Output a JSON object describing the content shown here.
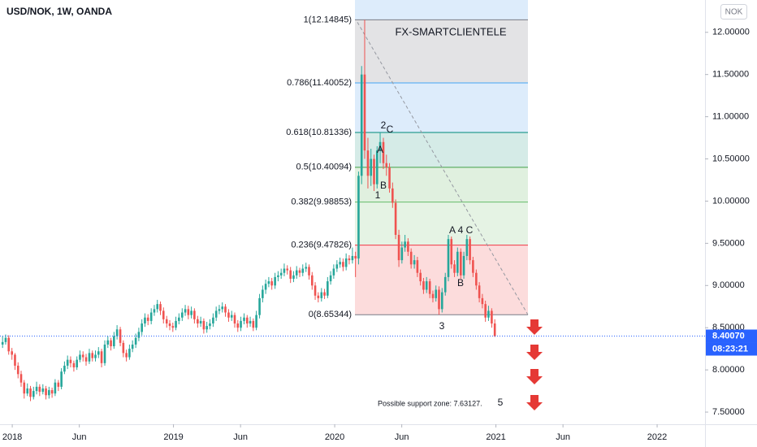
{
  "chart_data": {
    "type": "candlestick",
    "title": "USD/NOK, 1W, OANDA",
    "currency_button": "NOK",
    "up_color": "#26a69a",
    "down_color": "#ef5350",
    "grid": false,
    "xlim": [
      2017.924,
      2022.297
    ],
    "xticks": [
      2018,
      {
        "value": 2018.416,
        "label": "Jun"
      },
      2019,
      {
        "value": 2019.416,
        "label": "Jun"
      },
      2020,
      {
        "value": 2020.416,
        "label": "Jun"
      },
      2021,
      {
        "value": 2021.416,
        "label": "Jun"
      },
      2022
    ],
    "ylim": [
      7.356,
      12.383
    ],
    "yticks": [
      {
        "value": 7.5,
        "label": "7.50000"
      },
      {
        "value": 8,
        "label": "8.00000"
      },
      {
        "value": 8.5,
        "label": "8.50000"
      },
      {
        "value": 9,
        "label": "9.00000"
      },
      {
        "value": 9.5,
        "label": "9.50000"
      },
      {
        "value": 10,
        "label": "10.00000"
      },
      {
        "value": 10.5,
        "label": "10.50000"
      },
      {
        "value": 11,
        "label": "11.00000"
      },
      {
        "value": 11.5,
        "label": "11.50000"
      },
      {
        "value": 12,
        "label": "12.00000"
      }
    ],
    "last_price": {
      "value": 8.4007,
      "label": "8.40070",
      "color": "#2962ff"
    },
    "countdown": "08:23:21",
    "fib_levels": [
      {
        "label": "1(12.14845)",
        "value": 12.14845,
        "color": "#787b86",
        "band_color": "#e3e3e5"
      },
      {
        "label": "0.786(11.40052)",
        "value": 11.40052,
        "color": "#42a5f5",
        "band_color": "#ddecfb"
      },
      {
        "label": "0.618(10.81336)",
        "value": 10.81336,
        "color": "#00897b",
        "band_color": "#d5ebe7"
      },
      {
        "label": "0.5(10.40094)",
        "value": 10.40094,
        "color": "#43a047",
        "band_color": "#e0f0df"
      },
      {
        "label": "0.382(9.98853)",
        "value": 9.98853,
        "color": "#66bb6a",
        "band_color": "#e5f3e4"
      },
      {
        "label": "0.236(9.47826)",
        "value": 9.47826,
        "color": "#f23645",
        "band_color": "#fcdcdc"
      },
      {
        "label": "0(8.65344)",
        "value": 8.65344,
        "color": "#787b86"
      }
    ],
    "annotations": [
      "FX-SMARTCLIENTELE",
      "2",
      "C",
      "A",
      "B",
      "1",
      "A",
      "4",
      "C",
      "B",
      "3",
      "Possible support zone: 7.63127.",
      "5"
    ],
    "x": [
      2017.94,
      2017.959,
      2017.978,
      2017.998,
      2018.017,
      2018.036,
      2018.055,
      2018.074,
      2018.094,
      2018.113,
      2018.132,
      2018.151,
      2018.17,
      2018.19,
      2018.209,
      2018.228,
      2018.247,
      2018.266,
      2018.286,
      2018.305,
      2018.324,
      2018.343,
      2018.362,
      2018.382,
      2018.401,
      2018.42,
      2018.439,
      2018.458,
      2018.478,
      2018.497,
      2018.516,
      2018.535,
      2018.554,
      2018.574,
      2018.593,
      2018.612,
      2018.631,
      2018.65,
      2018.67,
      2018.689,
      2018.708,
      2018.727,
      2018.746,
      2018.766,
      2018.785,
      2018.804,
      2018.823,
      2018.842,
      2018.862,
      2018.881,
      2018.9,
      2018.919,
      2018.938,
      2018.958,
      2018.977,
      2018.996,
      2019.015,
      2019.034,
      2019.054,
      2019.073,
      2019.092,
      2019.111,
      2019.13,
      2019.15,
      2019.169,
      2019.188,
      2019.207,
      2019.226,
      2019.246,
      2019.265,
      2019.284,
      2019.303,
      2019.322,
      2019.342,
      2019.361,
      2019.38,
      2019.399,
      2019.418,
      2019.438,
      2019.457,
      2019.476,
      2019.495,
      2019.514,
      2019.534,
      2019.553,
      2019.572,
      2019.591,
      2019.61,
      2019.63,
      2019.649,
      2019.668,
      2019.687,
      2019.706,
      2019.726,
      2019.745,
      2019.764,
      2019.783,
      2019.802,
      2019.822,
      2019.841,
      2019.86,
      2019.879,
      2019.898,
      2019.918,
      2019.937,
      2019.956,
      2019.975,
      2019.994,
      2020.014,
      2020.033,
      2020.052,
      2020.071,
      2020.09,
      2020.11,
      2020.129,
      2020.148,
      2020.167,
      2020.186,
      2020.206,
      2020.225,
      2020.244,
      2020.263,
      2020.282,
      2020.302,
      2020.321,
      2020.34,
      2020.359,
      2020.378,
      2020.398,
      2020.417,
      2020.436,
      2020.455,
      2020.474,
      2020.494,
      2020.513,
      2020.532,
      2020.551,
      2020.57,
      2020.59,
      2020.609,
      2020.628,
      2020.647,
      2020.666,
      2020.686,
      2020.705,
      2020.724,
      2020.743,
      2020.762,
      2020.782,
      2020.801,
      2020.82,
      2020.839,
      2020.858,
      2020.878,
      2020.897,
      2020.916,
      2020.935,
      2020.954,
      2020.974,
      2020.993
    ],
    "ohlc": [
      [
        8.3,
        8.4,
        8.26,
        8.33
      ],
      [
        8.33,
        8.42,
        8.3,
        8.38
      ],
      [
        8.38,
        8.41,
        8.18,
        8.22
      ],
      [
        8.22,
        8.26,
        8.12,
        8.18
      ],
      [
        8.18,
        8.2,
        8.0,
        8.05
      ],
      [
        8.05,
        8.09,
        7.9,
        7.95
      ],
      [
        7.95,
        7.99,
        7.8,
        7.85
      ],
      [
        7.85,
        7.88,
        7.66,
        7.72
      ],
      [
        7.72,
        7.84,
        7.69,
        7.78
      ],
      [
        7.78,
        7.81,
        7.63,
        7.68
      ],
      [
        7.68,
        7.8,
        7.65,
        7.75
      ],
      [
        7.75,
        7.86,
        7.71,
        7.8
      ],
      [
        7.8,
        7.83,
        7.69,
        7.74
      ],
      [
        7.74,
        7.83,
        7.71,
        7.78
      ],
      [
        7.78,
        7.81,
        7.65,
        7.7
      ],
      [
        7.7,
        7.8,
        7.66,
        7.76
      ],
      [
        7.76,
        7.79,
        7.67,
        7.72
      ],
      [
        7.72,
        7.89,
        7.69,
        7.85
      ],
      [
        7.85,
        7.88,
        7.75,
        7.8
      ],
      [
        7.8,
        8.02,
        7.77,
        7.98
      ],
      [
        7.98,
        8.1,
        7.95,
        8.05
      ],
      [
        8.05,
        8.17,
        8.01,
        8.12
      ],
      [
        8.12,
        8.16,
        8.03,
        8.08
      ],
      [
        8.08,
        8.11,
        7.98,
        8.03
      ],
      [
        8.03,
        8.16,
        8.0,
        8.12
      ],
      [
        8.12,
        8.23,
        8.09,
        8.18
      ],
      [
        8.18,
        8.22,
        8.1,
        8.15
      ],
      [
        8.15,
        8.19,
        8.05,
        8.1
      ],
      [
        8.1,
        8.25,
        8.07,
        8.2
      ],
      [
        8.2,
        8.23,
        8.1,
        8.14
      ],
      [
        8.14,
        8.23,
        8.1,
        8.18
      ],
      [
        8.18,
        8.27,
        8.14,
        8.22
      ],
      [
        8.22,
        8.25,
        8.03,
        8.08
      ],
      [
        8.08,
        8.35,
        8.05,
        8.3
      ],
      [
        8.3,
        8.4,
        8.26,
        8.35
      ],
      [
        8.35,
        8.38,
        8.23,
        8.28
      ],
      [
        8.28,
        8.45,
        8.25,
        8.4
      ],
      [
        8.4,
        8.53,
        8.36,
        8.48
      ],
      [
        8.48,
        8.51,
        8.28,
        8.32
      ],
      [
        8.32,
        8.35,
        8.15,
        8.2
      ],
      [
        8.2,
        8.24,
        8.1,
        8.15
      ],
      [
        8.15,
        8.3,
        8.12,
        8.25
      ],
      [
        8.25,
        8.35,
        8.21,
        8.3
      ],
      [
        8.3,
        8.43,
        8.26,
        8.38
      ],
      [
        8.38,
        8.5,
        8.34,
        8.45
      ],
      [
        8.45,
        8.6,
        8.41,
        8.55
      ],
      [
        8.55,
        8.67,
        8.51,
        8.62
      ],
      [
        8.62,
        8.66,
        8.53,
        8.58
      ],
      [
        8.58,
        8.73,
        8.54,
        8.68
      ],
      [
        8.68,
        8.77,
        8.64,
        8.72
      ],
      [
        8.72,
        8.83,
        8.68,
        8.78
      ],
      [
        8.78,
        8.81,
        8.65,
        8.7
      ],
      [
        8.7,
        8.74,
        8.55,
        8.6
      ],
      [
        8.6,
        8.64,
        8.5,
        8.55
      ],
      [
        8.55,
        8.59,
        8.47,
        8.52
      ],
      [
        8.52,
        8.56,
        8.45,
        8.5
      ],
      [
        8.5,
        8.63,
        8.47,
        8.58
      ],
      [
        8.58,
        8.67,
        8.54,
        8.62
      ],
      [
        8.62,
        8.73,
        8.58,
        8.68
      ],
      [
        8.68,
        8.77,
        8.64,
        8.72
      ],
      [
        8.72,
        8.76,
        8.6,
        8.65
      ],
      [
        8.65,
        8.75,
        8.61,
        8.7
      ],
      [
        8.7,
        8.73,
        8.55,
        8.6
      ],
      [
        8.6,
        8.64,
        8.5,
        8.55
      ],
      [
        8.55,
        8.63,
        8.51,
        8.58
      ],
      [
        8.58,
        8.61,
        8.43,
        8.48
      ],
      [
        8.48,
        8.57,
        8.44,
        8.52
      ],
      [
        8.52,
        8.6,
        8.48,
        8.55
      ],
      [
        8.55,
        8.67,
        8.51,
        8.62
      ],
      [
        8.62,
        8.75,
        8.58,
        8.7
      ],
      [
        8.7,
        8.77,
        8.66,
        8.72
      ],
      [
        8.72,
        8.8,
        8.68,
        8.75
      ],
      [
        8.75,
        8.78,
        8.63,
        8.68
      ],
      [
        8.68,
        8.72,
        8.57,
        8.62
      ],
      [
        8.62,
        8.7,
        8.58,
        8.65
      ],
      [
        8.65,
        8.68,
        8.5,
        8.55
      ],
      [
        8.55,
        8.59,
        8.45,
        8.5
      ],
      [
        8.5,
        8.63,
        8.46,
        8.58
      ],
      [
        8.58,
        8.67,
        8.54,
        8.62
      ],
      [
        8.62,
        8.65,
        8.5,
        8.55
      ],
      [
        8.55,
        8.63,
        8.51,
        8.58
      ],
      [
        8.58,
        8.61,
        8.46,
        8.5
      ],
      [
        8.5,
        8.7,
        8.47,
        8.65
      ],
      [
        8.65,
        8.9,
        8.61,
        8.85
      ],
      [
        8.85,
        9.0,
        8.8,
        8.95
      ],
      [
        8.95,
        9.07,
        8.9,
        9.02
      ],
      [
        9.02,
        9.1,
        8.98,
        9.05
      ],
      [
        9.05,
        9.09,
        8.95,
        9.0
      ],
      [
        9.0,
        9.15,
        8.96,
        9.1
      ],
      [
        9.1,
        9.17,
        9.05,
        9.12
      ],
      [
        9.12,
        9.2,
        9.08,
        9.15
      ],
      [
        9.15,
        9.26,
        9.11,
        9.2
      ],
      [
        9.2,
        9.24,
        9.13,
        9.18
      ],
      [
        9.18,
        9.22,
        9.03,
        9.08
      ],
      [
        9.08,
        9.17,
        9.04,
        9.12
      ],
      [
        9.12,
        9.23,
        9.08,
        9.18
      ],
      [
        9.18,
        9.21,
        9.1,
        9.15
      ],
      [
        9.15,
        9.25,
        9.11,
        9.2
      ],
      [
        9.2,
        9.27,
        9.16,
        9.22
      ],
      [
        9.22,
        9.25,
        9.07,
        9.12
      ],
      [
        9.12,
        9.16,
        8.95,
        9.0
      ],
      [
        9.0,
        9.04,
        8.83,
        8.88
      ],
      [
        8.88,
        8.92,
        8.8,
        8.85
      ],
      [
        8.85,
        8.97,
        8.81,
        8.92
      ],
      [
        8.92,
        8.96,
        8.84,
        8.88
      ],
      [
        8.88,
        9.1,
        8.85,
        9.05
      ],
      [
        9.05,
        9.17,
        9.01,
        9.12
      ],
      [
        9.12,
        9.25,
        9.08,
        9.2
      ],
      [
        9.2,
        9.3,
        9.16,
        9.25
      ],
      [
        9.25,
        9.33,
        9.21,
        9.28
      ],
      [
        9.28,
        9.32,
        9.17,
        9.22
      ],
      [
        9.22,
        9.38,
        9.18,
        9.32
      ],
      [
        9.32,
        9.36,
        9.25,
        9.3
      ],
      [
        9.3,
        9.45,
        9.26,
        9.35
      ],
      [
        9.35,
        9.4,
        9.1,
        9.32
      ],
      [
        9.32,
        10.35,
        9.25,
        10.3
      ],
      [
        10.3,
        11.6,
        10.2,
        11.5
      ],
      [
        11.5,
        12.14845,
        10.5,
        10.6
      ],
      [
        10.6,
        10.75,
        10.15,
        10.3
      ],
      [
        10.3,
        10.62,
        10.18,
        10.5
      ],
      [
        10.5,
        10.55,
        10.12,
        10.2
      ],
      [
        10.2,
        10.65,
        10.15,
        10.6
      ],
      [
        10.6,
        10.81336,
        10.45,
        10.7
      ],
      [
        10.7,
        10.75,
        10.38,
        10.45
      ],
      [
        10.45,
        10.55,
        10.3,
        10.4
      ],
      [
        10.4,
        10.45,
        10.1,
        10.15
      ],
      [
        10.15,
        10.22,
        9.92,
        9.98
      ],
      [
        9.98,
        10.02,
        9.55,
        9.6
      ],
      [
        9.6,
        9.66,
        9.22,
        9.3
      ],
      [
        9.3,
        9.52,
        9.26,
        9.45
      ],
      [
        9.45,
        9.6,
        9.4,
        9.52
      ],
      [
        9.52,
        9.56,
        9.35,
        9.4
      ],
      [
        9.4,
        9.44,
        9.2,
        9.25
      ],
      [
        9.25,
        9.36,
        9.2,
        9.3
      ],
      [
        9.3,
        9.34,
        9.1,
        9.15
      ],
      [
        9.15,
        9.19,
        9.0,
        9.05
      ],
      [
        9.05,
        9.09,
        8.9,
        8.95
      ],
      [
        8.95,
        9.1,
        8.91,
        9.05
      ],
      [
        9.05,
        9.08,
        8.85,
        8.9
      ],
      [
        8.9,
        8.94,
        8.8,
        8.85
      ],
      [
        8.85,
        9.0,
        8.81,
        8.95
      ],
      [
        8.95,
        8.99,
        8.65344,
        8.72
      ],
      [
        8.72,
        8.97,
        8.68,
        8.92
      ],
      [
        8.92,
        9.15,
        8.88,
        9.1
      ],
      [
        9.1,
        9.6,
        9.05,
        9.55
      ],
      [
        9.55,
        9.58,
        9.2,
        9.25
      ],
      [
        9.25,
        9.3,
        9.1,
        9.15
      ],
      [
        9.15,
        9.45,
        9.11,
        9.4
      ],
      [
        9.4,
        9.44,
        9.08,
        9.12
      ],
      [
        9.12,
        9.4,
        9.08,
        9.35
      ],
      [
        9.35,
        9.6,
        9.3,
        9.55
      ],
      [
        9.55,
        9.58,
        9.25,
        9.3
      ],
      [
        9.3,
        9.34,
        9.1,
        9.15
      ],
      [
        9.15,
        9.19,
        8.95,
        9.0
      ],
      [
        9.0,
        9.04,
        8.8,
        8.85
      ],
      [
        8.85,
        8.9,
        8.73,
        8.78
      ],
      [
        8.78,
        8.82,
        8.57,
        8.62
      ],
      [
        8.62,
        8.76,
        8.58,
        8.7
      ],
      [
        8.7,
        8.73,
        8.5,
        8.55
      ],
      [
        8.55,
        8.6,
        8.39,
        8.4007
      ]
    ]
  }
}
